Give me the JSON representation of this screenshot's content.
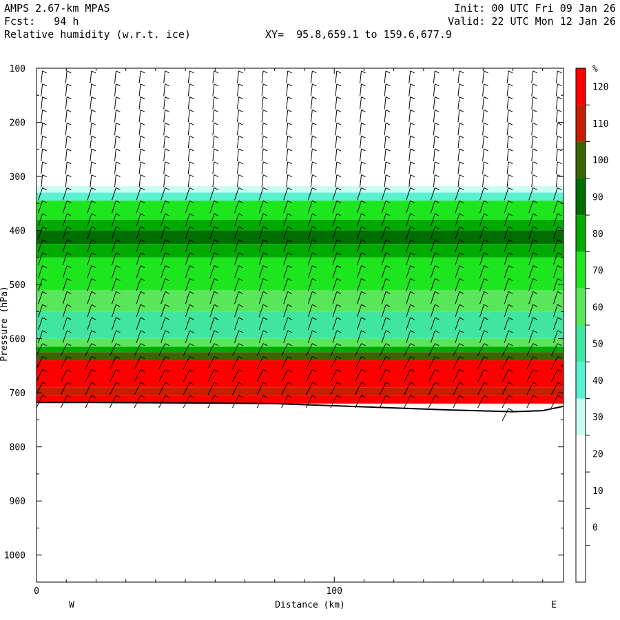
{
  "header": {
    "model": "AMPS 2.67-km MPAS",
    "fcst": "Fcst:   94 h",
    "field": "Relative humidity (w.r.t. ice)",
    "xy": "XY=  95.8,659.1 to 159.6,677.9",
    "init": "Init: 00 UTC Fri 09 Jan 26",
    "valid": "Valid: 22 UTC Mon 12 Jan 26"
  },
  "chart_data": {
    "type": "heatmap",
    "title": "Relative humidity (w.r.t. ice)",
    "xlabel": "Distance (km)",
    "ylabel": "Pressure (hPa)",
    "x_ticks": [
      0,
      100
    ],
    "y_ticks": [
      100,
      200,
      300,
      400,
      500,
      600,
      700,
      800,
      900,
      1000
    ],
    "xlim": [
      0,
      177
    ],
    "ylim": [
      100,
      1050
    ],
    "y_inverted": true,
    "x_left_label": "W",
    "x_right_label": "E",
    "colorbar": {
      "unit": "%",
      "levels": [
        120,
        110,
        100,
        90,
        80,
        70,
        60,
        50,
        40,
        30,
        20,
        10,
        0
      ],
      "colors": [
        "#ff0000",
        "#c81e00",
        "#3c6400",
        "#006e00",
        "#00aa00",
        "#1ee61e",
        "#5ae65a",
        "#40e6a0",
        "#5af0d2",
        "#c8fff0",
        "#ffffff",
        "#ffffff",
        "#ffffff",
        "#ffffff"
      ]
    },
    "terrain_surface": [
      [
        0,
        718
      ],
      [
        20,
        718
      ],
      [
        60,
        719
      ],
      [
        80,
        720
      ],
      [
        100,
        724
      ],
      [
        120,
        728
      ],
      [
        140,
        732
      ],
      [
        160,
        735
      ],
      [
        170,
        733
      ],
      [
        177,
        725
      ]
    ],
    "rh_layers": [
      {
        "p_top": 318,
        "p_bot": 330,
        "rh": 30
      },
      {
        "p_top": 330,
        "p_bot": 345,
        "rh": 40
      },
      {
        "p_top": 345,
        "p_bot": 380,
        "rh": 70
      },
      {
        "p_top": 380,
        "p_bot": 400,
        "rh": 80
      },
      {
        "p_top": 400,
        "p_bot": 425,
        "rh": 90
      },
      {
        "p_top": 425,
        "p_bot": 450,
        "rh": 80
      },
      {
        "p_top": 450,
        "p_bot": 510,
        "rh": 70
      },
      {
        "p_top": 510,
        "p_bot": 550,
        "rh": 60
      },
      {
        "p_top": 550,
        "p_bot": 600,
        "rh": 50
      },
      {
        "p_top": 600,
        "p_bot": 615,
        "rh": 60
      },
      {
        "p_top": 615,
        "p_bot": 625,
        "rh": 80
      },
      {
        "p_top": 625,
        "p_bot": 640,
        "rh": 100
      },
      {
        "p_top": 640,
        "p_bot": 690,
        "rh": 120
      },
      {
        "p_top": 690,
        "p_bot": 705,
        "rh": 110
      },
      {
        "p_top": 705,
        "p_bot": 720,
        "rh": 120
      }
    ]
  }
}
